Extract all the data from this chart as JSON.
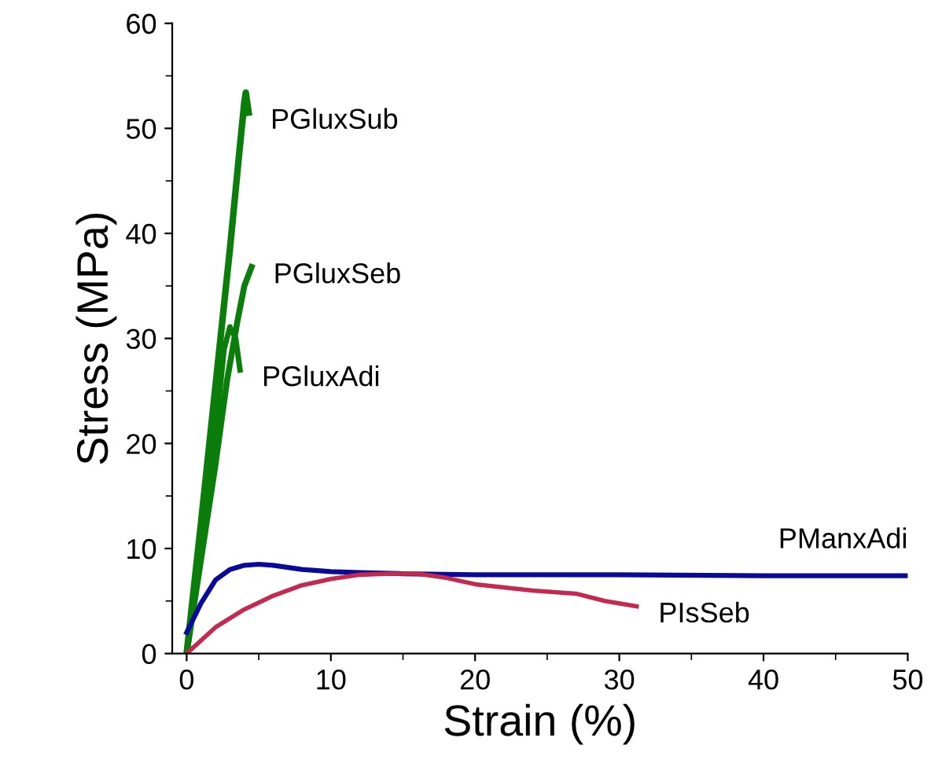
{
  "chart_data": {
    "type": "line",
    "xlabel": "Strain (%)",
    "ylabel": "Stress (MPa)",
    "xlim": [
      -1,
      50
    ],
    "ylim": [
      0,
      60
    ],
    "xticks": [
      0,
      10,
      20,
      30,
      40,
      50
    ],
    "yticks": [
      0,
      10,
      20,
      30,
      40,
      50,
      60
    ],
    "grid": false,
    "legend": false,
    "marker": "none",
    "line_style": "solid",
    "series": [
      {
        "name": "PGluxSub",
        "color": "#0a7d0a",
        "x": [
          0,
          1,
          2,
          3,
          3.6,
          4.0,
          4.1,
          4.3
        ],
        "values": [
          0,
          12.5,
          25.5,
          38.5,
          47,
          52.5,
          53.4,
          51.5
        ]
      },
      {
        "name": "PGluxSeb",
        "color": "#0a7d0a",
        "x": [
          0,
          1,
          2,
          2.8,
          3.5,
          4.0,
          4.5
        ],
        "values": [
          0,
          9,
          18,
          26,
          31.5,
          35,
          36.8
        ]
      },
      {
        "name": "PGluxAdi",
        "color": "#0a7d0a",
        "x": [
          0,
          1,
          2,
          2.6,
          3.0,
          3.4,
          3.7
        ],
        "values": [
          0,
          10,
          21,
          29,
          31.1,
          30,
          27
        ]
      },
      {
        "name": "PManxAdi",
        "color": "#0a0a9a",
        "x": [
          0,
          1,
          2,
          3,
          4,
          5,
          6,
          8,
          10,
          12,
          15,
          20,
          30,
          40,
          50
        ],
        "values": [
          2,
          4.8,
          7,
          8,
          8.4,
          8.5,
          8.4,
          8.0,
          7.8,
          7.7,
          7.6,
          7.5,
          7.5,
          7.4,
          7.4
        ]
      },
      {
        "name": "PIsSeb",
        "color": "#c42a50",
        "x": [
          0,
          2,
          4,
          6,
          8,
          10,
          12,
          14,
          16,
          18,
          20,
          24,
          27,
          29,
          31.2
        ],
        "values": [
          0,
          2.5,
          4.2,
          5.5,
          6.5,
          7.1,
          7.5,
          7.6,
          7.6,
          7.2,
          6.6,
          6.0,
          5.7,
          5.0,
          4.5
        ]
      }
    ]
  }
}
